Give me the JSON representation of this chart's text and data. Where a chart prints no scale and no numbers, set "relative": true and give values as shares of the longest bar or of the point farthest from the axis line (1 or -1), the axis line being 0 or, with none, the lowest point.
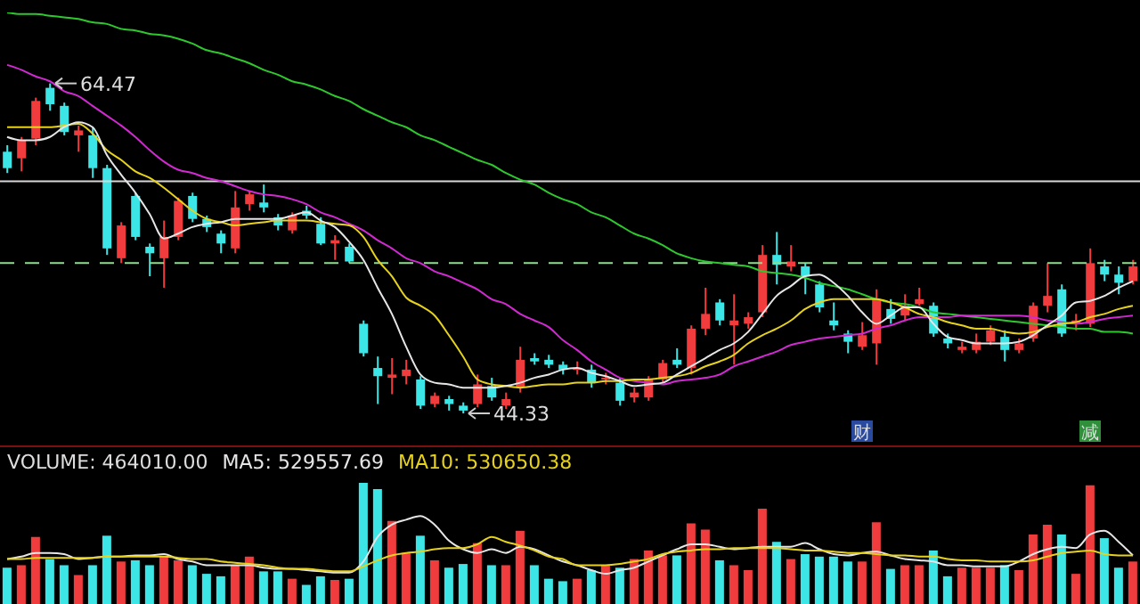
{
  "chart_data": [
    {
      "type": "candlestick",
      "categories": [
        null,
        null,
        null,
        null,
        null,
        null,
        null,
        null,
        null,
        null,
        null,
        null,
        null,
        null,
        null,
        null,
        null,
        null,
        null,
        null,
        null,
        null,
        null,
        null,
        null,
        null,
        null,
        null,
        null,
        null,
        null,
        null,
        null,
        null,
        null,
        null,
        null,
        null,
        null,
        null,
        null,
        null,
        null,
        null,
        null,
        null,
        null,
        null,
        null,
        null,
        null,
        null,
        null,
        null,
        null,
        null,
        null,
        null,
        null,
        null,
        null,
        null,
        null,
        null,
        null,
        null,
        null,
        null,
        null,
        null,
        null,
        null,
        null,
        null,
        null,
        null,
        null,
        null,
        null,
        null
      ],
      "ohlc": [
        [
          60.3,
          60.7,
          59.0,
          59.3
        ],
        [
          59.9,
          61.2,
          59.1,
          61.0
        ],
        [
          61.1,
          63.6,
          60.7,
          63.4
        ],
        [
          64.2,
          64.47,
          62.8,
          63.2
        ],
        [
          63.1,
          63.3,
          61.3,
          61.5
        ],
        [
          61.3,
          61.9,
          60.3,
          61.6
        ],
        [
          61.3,
          61.8,
          58.7,
          59.3
        ],
        [
          59.3,
          59.5,
          54.0,
          54.4
        ],
        [
          53.8,
          56.0,
          53.5,
          55.8
        ],
        [
          57.6,
          57.8,
          54.9,
          55.1
        ],
        [
          54.5,
          54.7,
          52.7,
          54.1
        ],
        [
          53.8,
          56.1,
          52.0,
          55.1
        ],
        [
          55.1,
          57.5,
          54.9,
          57.3
        ],
        [
          57.6,
          57.8,
          56.0,
          56.2
        ],
        [
          56.2,
          56.4,
          55.4,
          55.7
        ],
        [
          55.3,
          55.5,
          54.1,
          54.7
        ],
        [
          54.4,
          57.9,
          54.1,
          56.9
        ],
        [
          57.1,
          57.9,
          56.7,
          57.7
        ],
        [
          57.2,
          58.3,
          56.6,
          56.9
        ],
        [
          56.3,
          56.5,
          55.5,
          55.8
        ],
        [
          55.5,
          56.6,
          55.3,
          56.4
        ],
        [
          56.7,
          57.0,
          56.2,
          56.4
        ],
        [
          55.9,
          56.3,
          54.6,
          54.7
        ],
        [
          54.7,
          55.2,
          53.7,
          54.9
        ],
        [
          54.5,
          54.7,
          53.5,
          53.6
        ],
        [
          49.8,
          50.0,
          47.8,
          48.0
        ],
        [
          47.1,
          47.8,
          44.9,
          46.6
        ],
        [
          46.5,
          47.7,
          45.5,
          46.7
        ],
        [
          46.6,
          47.6,
          46.1,
          47.0
        ],
        [
          46.4,
          46.6,
          44.6,
          44.8
        ],
        [
          44.9,
          45.6,
          44.7,
          45.4
        ],
        [
          45.2,
          45.4,
          44.5,
          44.9
        ],
        [
          44.8,
          45.0,
          44.33,
          44.5
        ],
        [
          44.9,
          46.7,
          44.7,
          46.1
        ],
        [
          46.0,
          46.5,
          45.1,
          45.3
        ],
        [
          44.8,
          45.6,
          44.6,
          45.2
        ],
        [
          45.9,
          48.4,
          45.6,
          47.6
        ],
        [
          47.7,
          48.0,
          47.3,
          47.5
        ],
        [
          47.6,
          47.9,
          47.1,
          47.3
        ],
        [
          47.3,
          47.5,
          46.7,
          47.0
        ],
        [
          47.0,
          47.5,
          46.7,
          47.1
        ],
        [
          47.0,
          47.3,
          45.9,
          46.2
        ],
        [
          46.4,
          46.8,
          46.1,
          46.5
        ],
        [
          46.2,
          46.5,
          44.8,
          45.1
        ],
        [
          45.3,
          45.9,
          45.0,
          45.6
        ],
        [
          45.3,
          46.6,
          45.1,
          46.4
        ],
        [
          46.4,
          47.6,
          46.2,
          47.4
        ],
        [
          47.6,
          48.3,
          47.1,
          47.3
        ],
        [
          47.1,
          49.7,
          46.7,
          49.5
        ],
        [
          49.5,
          52.0,
          49.1,
          50.4
        ],
        [
          51.1,
          51.3,
          49.7,
          50.0
        ],
        [
          49.7,
          51.6,
          47.3,
          50.0
        ],
        [
          49.8,
          50.5,
          49.5,
          50.2
        ],
        [
          50.5,
          54.6,
          50.2,
          54.0
        ],
        [
          54.0,
          55.4,
          52.2,
          53.4
        ],
        [
          53.3,
          54.6,
          53.0,
          53.6
        ],
        [
          53.3,
          53.5,
          51.6,
          52.7
        ],
        [
          52.2,
          52.4,
          50.5,
          50.8
        ],
        [
          50.0,
          51.1,
          49.4,
          49.7
        ],
        [
          49.2,
          49.4,
          48.0,
          48.7
        ],
        [
          48.4,
          49.9,
          48.2,
          49.1
        ],
        [
          48.6,
          51.9,
          47.3,
          51.3
        ],
        [
          50.7,
          51.3,
          49.8,
          50.1
        ],
        [
          50.3,
          51.6,
          50.0,
          50.9
        ],
        [
          51.0,
          52.0,
          50.9,
          51.3
        ],
        [
          50.9,
          51.1,
          49.0,
          49.2
        ],
        [
          48.9,
          49.2,
          48.3,
          48.6
        ],
        [
          48.2,
          48.7,
          48.0,
          48.4
        ],
        [
          48.2,
          49.2,
          48.0,
          48.7
        ],
        [
          48.7,
          49.7,
          48.5,
          49.4
        ],
        [
          49.0,
          49.4,
          47.5,
          48.2
        ],
        [
          48.2,
          48.9,
          48.0,
          48.6
        ],
        [
          48.9,
          51.1,
          48.7,
          50.9
        ],
        [
          50.9,
          53.5,
          50.5,
          51.5
        ],
        [
          51.9,
          52.2,
          49.0,
          49.2
        ],
        [
          49.8,
          50.4,
          49.4,
          50.0
        ],
        [
          49.8,
          54.4,
          49.6,
          53.5
        ],
        [
          53.3,
          53.7,
          52.4,
          52.8
        ],
        [
          52.8,
          53.3,
          51.6,
          52.3
        ],
        [
          52.4,
          53.7,
          52.2,
          53.3
        ]
      ],
      "colors": [
        "#3ce6e6",
        "#f03c3c",
        "#f03c3c",
        "#3ce6e6",
        "#3ce6e6",
        "#f03c3c",
        "#3ce6e6",
        "#3ce6e6",
        "#f03c3c",
        "#3ce6e6",
        "#3ce6e6",
        "#f03c3c",
        "#f03c3c",
        "#3ce6e6",
        "#3ce6e6",
        "#3ce6e6",
        "#f03c3c",
        "#f03c3c",
        "#3ce6e6",
        "#3ce6e6",
        "#f03c3c",
        "#3ce6e6",
        "#3ce6e6",
        "#f03c3c",
        "#3ce6e6",
        "#3ce6e6",
        "#3ce6e6",
        "#f03c3c",
        "#f03c3c",
        "#3ce6e6",
        "#f03c3c",
        "#3ce6e6",
        "#3ce6e6",
        "#f03c3c",
        "#3ce6e6",
        "#f03c3c",
        "#f03c3c",
        "#3ce6e6",
        "#3ce6e6",
        "#3ce6e6",
        "#f03c3c",
        "#3ce6e6",
        "#f03c3c",
        "#3ce6e6",
        "#f03c3c",
        "#f03c3c",
        "#f03c3c",
        "#3ce6e6",
        "#f03c3c",
        "#f03c3c",
        "#3ce6e6",
        "#f03c3c",
        "#f03c3c",
        "#f03c3c",
        "#3ce6e6",
        "#f03c3c",
        "#3ce6e6",
        "#3ce6e6",
        "#3ce6e6",
        "#3ce6e6",
        "#f03c3c",
        "#f03c3c",
        "#3ce6e6",
        "#f03c3c",
        "#f03c3c",
        "#3ce6e6",
        "#3ce6e6",
        "#f03c3c",
        "#f03c3c",
        "#f03c3c",
        "#3ce6e6",
        "#f03c3c",
        "#f03c3c",
        "#f03c3c",
        "#3ce6e6",
        "#f03c3c",
        "#f03c3c",
        "#3ce6e6",
        "#3ce6e6",
        "#f03c3c"
      ],
      "series": [
        {
          "type": "line",
          "color": "#2ec82e",
          "values": [
            68.8,
            68.7,
            68.7,
            68.6,
            68.5,
            68.4,
            68.2,
            68.1,
            67.8,
            67.7,
            67.5,
            67.4,
            67.2,
            66.9,
            66.5,
            66.3,
            66.0,
            65.7,
            65.3,
            65.0,
            64.6,
            64.4,
            64.1,
            63.7,
            63.4,
            62.9,
            62.5,
            62.1,
            61.8,
            61.3,
            61.0,
            60.6,
            60.2,
            59.8,
            59.5,
            59.0,
            58.6,
            58.3,
            57.8,
            57.4,
            57.1,
            56.6,
            56.3,
            55.8,
            55.3,
            55.0,
            54.6,
            54.1,
            53.8,
            53.6,
            53.5,
            53.4,
            53.3,
            53.0,
            52.9,
            52.8,
            52.6,
            52.3,
            52.1,
            51.9,
            51.6,
            51.3,
            51.1,
            51.0,
            50.8,
            50.5,
            50.4,
            50.3,
            50.2,
            50.1,
            50.0,
            49.9,
            49.8,
            49.7,
            49.6,
            49.5,
            49.5,
            49.3,
            49.3,
            49.2
          ]
        },
        {
          "type": "line",
          "color": "#d22ad2",
          "values": [
            65.6,
            65.3,
            64.9,
            64.6,
            64.0,
            63.7,
            63.1,
            62.5,
            61.9,
            61.2,
            60.4,
            59.7,
            59.2,
            59.0,
            58.7,
            58.5,
            58.2,
            57.9,
            57.7,
            57.6,
            57.4,
            57.1,
            56.6,
            56.3,
            55.9,
            55.5,
            54.9,
            54.4,
            53.8,
            53.5,
            53.0,
            52.7,
            52.3,
            51.9,
            51.3,
            51.0,
            50.4,
            50.0,
            49.6,
            48.8,
            48.2,
            47.5,
            47.0,
            46.5,
            46.3,
            46.2,
            46.1,
            46.3,
            46.4,
            46.5,
            46.7,
            47.2,
            47.5,
            47.8,
            48.1,
            48.5,
            48.7,
            48.9,
            49.0,
            49.1,
            49.2,
            49.5,
            49.7,
            50.0,
            50.2,
            50.2,
            50.2,
            50.3,
            50.3,
            50.3,
            50.3,
            50.3,
            50.2,
            50.0,
            49.9,
            49.8,
            49.9,
            50.1,
            50.2,
            50.3
          ]
        },
        {
          "type": "line",
          "color": "#e6d21e",
          "values": [
            61.8,
            61.8,
            61.8,
            61.8,
            61.9,
            62.0,
            61.4,
            60.4,
            59.8,
            59.1,
            58.7,
            58.1,
            57.4,
            56.7,
            56.2,
            56.0,
            55.8,
            55.9,
            56.0,
            56.1,
            56.1,
            56.1,
            56.0,
            55.9,
            55.8,
            55.1,
            53.7,
            52.7,
            51.4,
            50.9,
            50.3,
            49.1,
            47.8,
            46.4,
            46.1,
            46.0,
            45.9,
            46.0,
            46.1,
            46.1,
            46.2,
            46.2,
            46.3,
            46.3,
            46.4,
            46.4,
            46.5,
            46.6,
            46.8,
            47.2,
            47.5,
            47.9,
            48.6,
            49.1,
            49.5,
            50.0,
            50.7,
            51.1,
            51.3,
            51.3,
            51.3,
            51.3,
            51.1,
            50.8,
            50.4,
            50.2,
            49.9,
            49.7,
            49.5,
            49.5,
            49.3,
            49.2,
            49.3,
            49.6,
            49.8,
            49.9,
            50.2,
            50.4,
            50.7,
            50.9
          ]
        },
        {
          "type": "line",
          "color": "#e6e6e6",
          "values": [
            61.2,
            61.0,
            61.0,
            61.2,
            61.8,
            62.1,
            61.8,
            60.1,
            58.9,
            57.8,
            56.5,
            55.0,
            55.3,
            55.7,
            55.9,
            56.0,
            56.2,
            56.2,
            56.2,
            56.2,
            56.4,
            56.6,
            56.1,
            55.7,
            54.8,
            53.7,
            52.0,
            50.4,
            48.4,
            46.7,
            46.2,
            46.1,
            45.9,
            45.9,
            45.9,
            46.0,
            46.2,
            46.5,
            46.7,
            47.0,
            47.1,
            46.8,
            46.6,
            46.3,
            46.0,
            46.1,
            46.2,
            46.7,
            47.2,
            47.7,
            48.2,
            48.6,
            49.3,
            50.4,
            51.5,
            52.1,
            52.7,
            52.8,
            52.3,
            51.5,
            50.5,
            49.8,
            50.3,
            50.8,
            50.8,
            49.8,
            49.0,
            48.8,
            48.6,
            48.6,
            48.6,
            48.7,
            49.1,
            49.7,
            50.3,
            51.1,
            51.2,
            51.5,
            52.0,
            52.4
          ]
        }
      ],
      "ref_lines": [
        {
          "axis": "y",
          "value": 58.5,
          "color": "#d8d8d8",
          "line_style": "solid"
        },
        {
          "axis": "y",
          "value": 53.5,
          "color": "#8ce08c",
          "line_style": "dashed"
        }
      ],
      "annotations": [
        "64.47",
        "44.33",
        "财",
        "减"
      ]
    },
    {
      "type": "bar",
      "relative": true,
      "title": "VOLUME: 464010.00",
      "legend": "top left",
      "categories": [
        null,
        null,
        null,
        null,
        null,
        null,
        null,
        null,
        null,
        null,
        null,
        null,
        null,
        null,
        null,
        null,
        null,
        null,
        null,
        null,
        null,
        null,
        null,
        null,
        null,
        null,
        null,
        null,
        null,
        null,
        null,
        null,
        null,
        null,
        null,
        null,
        null,
        null,
        null,
        null,
        null,
        null,
        null,
        null,
        null,
        null,
        null,
        null,
        null,
        null,
        null,
        null,
        null,
        null,
        null,
        null,
        null,
        null,
        null,
        null,
        null,
        null,
        null,
        null,
        null,
        null,
        null,
        null,
        null,
        null,
        null,
        null,
        null,
        null,
        null,
        null,
        null,
        null,
        null,
        null
      ],
      "series": [
        {
          "type": "bar",
          "colors": [
            "#3ce6e6",
            "#f03c3c",
            "#f03c3c",
            "#3ce6e6",
            "#3ce6e6",
            "#f03c3c",
            "#3ce6e6",
            "#3ce6e6",
            "#f03c3c",
            "#3ce6e6",
            "#3ce6e6",
            "#f03c3c",
            "#f03c3c",
            "#3ce6e6",
            "#3ce6e6",
            "#3ce6e6",
            "#f03c3c",
            "#f03c3c",
            "#3ce6e6",
            "#3ce6e6",
            "#f03c3c",
            "#3ce6e6",
            "#3ce6e6",
            "#f03c3c",
            "#3ce6e6",
            "#3ce6e6",
            "#3ce6e6",
            "#f03c3c",
            "#f03c3c",
            "#3ce6e6",
            "#f03c3c",
            "#3ce6e6",
            "#3ce6e6",
            "#f03c3c",
            "#3ce6e6",
            "#f03c3c",
            "#f03c3c",
            "#3ce6e6",
            "#3ce6e6",
            "#3ce6e6",
            "#f03c3c",
            "#3ce6e6",
            "#f03c3c",
            "#3ce6e6",
            "#f03c3c",
            "#f03c3c",
            "#f03c3c",
            "#3ce6e6",
            "#f03c3c",
            "#f03c3c",
            "#3ce6e6",
            "#f03c3c",
            "#f03c3c",
            "#f03c3c",
            "#3ce6e6",
            "#f03c3c",
            "#3ce6e6",
            "#3ce6e6",
            "#3ce6e6",
            "#3ce6e6",
            "#f03c3c",
            "#f03c3c",
            "#3ce6e6",
            "#f03c3c",
            "#f03c3c",
            "#3ce6e6",
            "#3ce6e6",
            "#f03c3c",
            "#f03c3c",
            "#f03c3c",
            "#3ce6e6",
            "#f03c3c",
            "#f03c3c",
            "#f03c3c",
            "#3ce6e6",
            "#f03c3c",
            "#f03c3c",
            "#3ce6e6",
            "#3ce6e6",
            "#f03c3c"
          ],
          "values": [
            0.31,
            0.33,
            0.56,
            0.38,
            0.33,
            0.25,
            0.33,
            0.57,
            0.36,
            0.37,
            0.33,
            0.4,
            0.37,
            0.33,
            0.26,
            0.24,
            0.33,
            0.4,
            0.28,
            0.28,
            0.22,
            0.17,
            0.24,
            0.21,
            0.22,
            1,
            0.95,
            0.69,
            0.43,
            0.57,
            0.37,
            0.31,
            0.34,
            0.51,
            0.33,
            0.33,
            0.61,
            0.33,
            0.22,
            0.2,
            0.22,
            0.29,
            0.33,
            0.31,
            0.38,
            0.45,
            0.41,
            0.41,
            0.67,
            0.62,
            0.37,
            0.33,
            0.29,
            0.79,
            0.52,
            0.38,
            0.42,
            0.4,
            0.4,
            0.36,
            0.36,
            0.68,
            0.3,
            0.33,
            0.33,
            0.45,
            0.24,
            0.31,
            0.31,
            0.31,
            0.33,
            0.29,
            0.58,
            0.66,
            0.58,
            0.26,
            0.98,
            0.55,
            0.31,
            0.36
          ]
        },
        {
          "type": "line",
          "name": "MA5: 529557.69",
          "color": "#e6e6e6",
          "values": [
            0.38,
            0.4,
            0.43,
            0.43,
            0.42,
            0.38,
            0.39,
            0.4,
            0.4,
            0.41,
            0.41,
            0.42,
            0.38,
            0.36,
            0.33,
            0.33,
            0.33,
            0.33,
            0.31,
            0.3,
            0.3,
            0.29,
            0.28,
            0.27,
            0.27,
            0.36,
            0.56,
            0.66,
            0.7,
            0.73,
            0.66,
            0.53,
            0.46,
            0.43,
            0.46,
            0.43,
            0.48,
            0.46,
            0.41,
            0.36,
            0.33,
            0.29,
            0.26,
            0.29,
            0.31,
            0.36,
            0.41,
            0.46,
            0.5,
            0.5,
            0.48,
            0.46,
            0.47,
            0.48,
            0.48,
            0.48,
            0.51,
            0.46,
            0.42,
            0.41,
            0.43,
            0.44,
            0.41,
            0.38,
            0.37,
            0.36,
            0.33,
            0.33,
            0.32,
            0.32,
            0.32,
            0.36,
            0.42,
            0.46,
            0.48,
            0.47,
            0.58,
            0.61,
            0.52,
            0.41
          ]
        },
        {
          "type": "line",
          "name": "MA10: 530650.38",
          "color": "#e6d21e",
          "values": [
            0.38,
            0.38,
            0.39,
            0.39,
            0.39,
            0.39,
            0.39,
            0.4,
            0.4,
            0.4,
            0.4,
            0.4,
            0.39,
            0.38,
            0.38,
            0.36,
            0.35,
            0.34,
            0.33,
            0.31,
            0.3,
            0.3,
            0.29,
            0.28,
            0.28,
            0.32,
            0.37,
            0.41,
            0.43,
            0.44,
            0.46,
            0.47,
            0.47,
            0.5,
            0.56,
            0.52,
            0.49,
            0.45,
            0.4,
            0.38,
            0.33,
            0.33,
            0.33,
            0.34,
            0.36,
            0.38,
            0.42,
            0.44,
            0.45,
            0.46,
            0.46,
            0.47,
            0.47,
            0.47,
            0.47,
            0.46,
            0.45,
            0.45,
            0.44,
            0.43,
            0.43,
            0.42,
            0.41,
            0.41,
            0.4,
            0.4,
            0.38,
            0.37,
            0.37,
            0.36,
            0.36,
            0.36,
            0.37,
            0.4,
            0.43,
            0.44,
            0.45,
            0.42,
            0.41,
            0.41
          ]
        }
      ]
    }
  ]
}
